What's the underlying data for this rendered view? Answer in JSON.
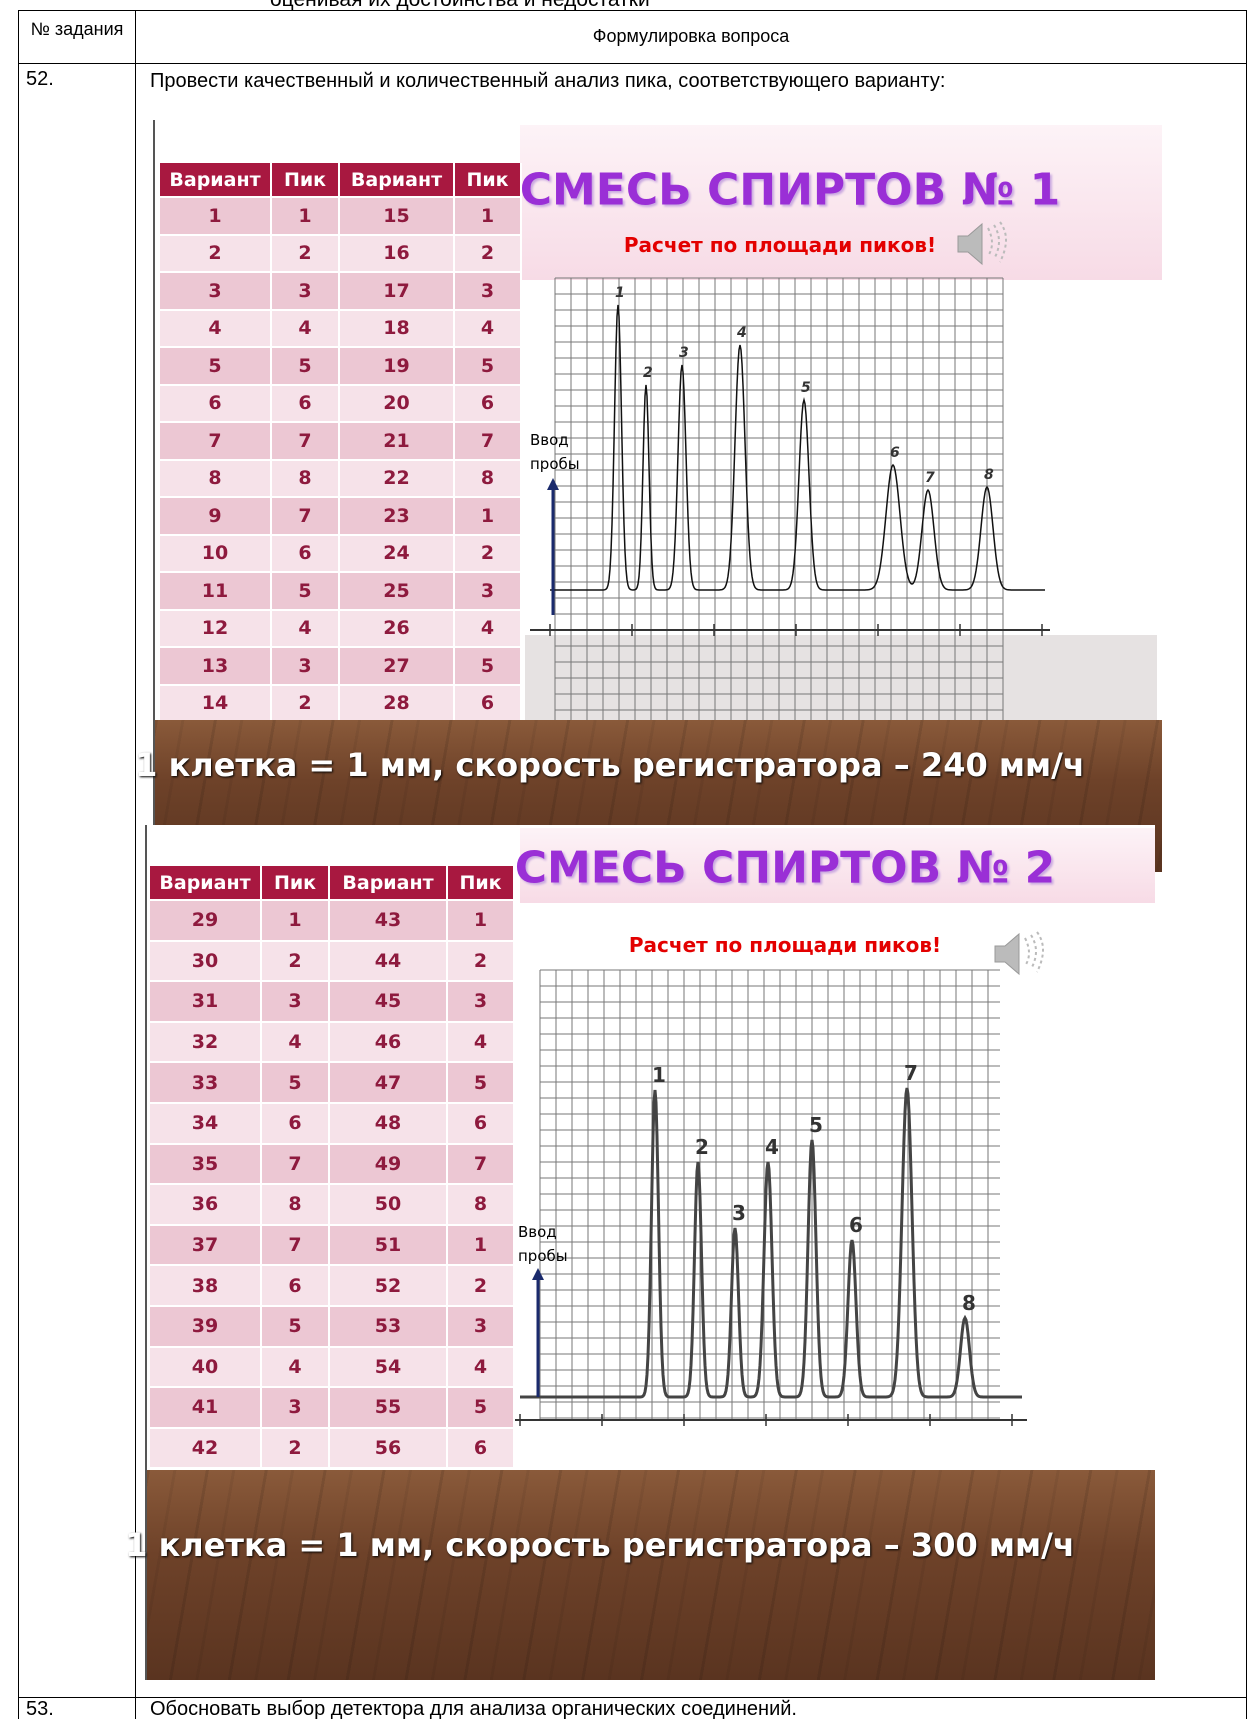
{
  "header_text": "оценивая их достоинства и недостатки",
  "table": {
    "columns": [
      "№ задания",
      "Формулировка вопроса"
    ],
    "rows": [
      {
        "number": "52.",
        "question": "Провести качественный и количественный анализ пика, соответствующего варианту:",
        "slides": [
          {
            "title": "СМЕСЬ СПИРТОВ № 1",
            "subtitle": "Расчет по площади пиков!",
            "table_columns": [
              "Вариант",
              "Пик",
              "Вариант",
              "Пик"
            ],
            "table_rows": [
              [
                "1",
                "1",
                "15",
                "1"
              ],
              [
                "2",
                "2",
                "16",
                "2"
              ],
              [
                "3",
                "3",
                "17",
                "3"
              ],
              [
                "4",
                "4",
                "18",
                "4"
              ],
              [
                "5",
                "5",
                "19",
                "5"
              ],
              [
                "6",
                "6",
                "20",
                "6"
              ],
              [
                "7",
                "7",
                "21",
                "7"
              ],
              [
                "8",
                "8",
                "22",
                "8"
              ],
              [
                "9",
                "7",
                "23",
                "1"
              ],
              [
                "10",
                "6",
                "24",
                "2"
              ],
              [
                "11",
                "5",
                "25",
                "3"
              ],
              [
                "12",
                "4",
                "26",
                "4"
              ],
              [
                "13",
                "3",
                "27",
                "5"
              ],
              [
                "14",
                "2",
                "28",
                "6"
              ]
            ],
            "injection_label": "Ввод пробы",
            "peak_labels": [
              "1",
              "2",
              "3",
              "4",
              "5",
              "6",
              "7",
              "8"
            ],
            "footer": "1 клетка = 1 мм, скорость регистратора – 240 мм/ч"
          },
          {
            "title": "СМЕСЬ СПИРТОВ № 2",
            "subtitle": "Расчет по площади пиков!",
            "table_columns": [
              "Вариант",
              "Пик",
              "Вариант",
              "Пик"
            ],
            "table_rows": [
              [
                "29",
                "1",
                "43",
                "1"
              ],
              [
                "30",
                "2",
                "44",
                "2"
              ],
              [
                "31",
                "3",
                "45",
                "3"
              ],
              [
                "32",
                "4",
                "46",
                "4"
              ],
              [
                "33",
                "5",
                "47",
                "5"
              ],
              [
                "34",
                "6",
                "48",
                "6"
              ],
              [
                "35",
                "7",
                "49",
                "7"
              ],
              [
                "36",
                "8",
                "50",
                "8"
              ],
              [
                "37",
                "7",
                "51",
                "1"
              ],
              [
                "38",
                "6",
                "52",
                "2"
              ],
              [
                "39",
                "5",
                "53",
                "3"
              ],
              [
                "40",
                "4",
                "54",
                "4"
              ],
              [
                "41",
                "3",
                "55",
                "5"
              ],
              [
                "42",
                "2",
                "56",
                "6"
              ]
            ],
            "injection_label": "Ввод пробы",
            "peak_labels": [
              "1",
              "2",
              "3",
              "4",
              "5",
              "6",
              "7",
              "8"
            ],
            "footer": "1 клетка = 1 мм, скорость регистратора – 300 мм/ч"
          }
        ]
      },
      {
        "number": "53.",
        "question": "Обосновать выбор детектора для анализа органических соединений."
      }
    ]
  }
}
